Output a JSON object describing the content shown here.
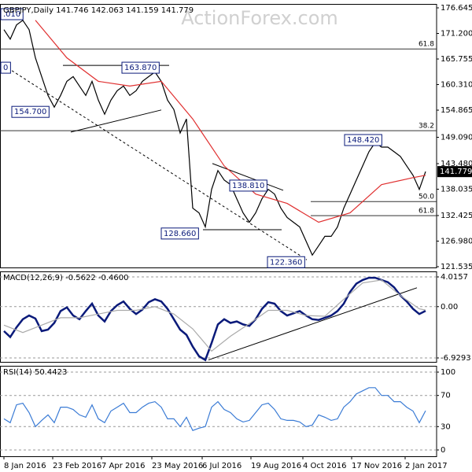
{
  "chart_data": [
    {
      "type": "line",
      "header": "GBPJPY,Daily  141.746 142.063 141.159 141.779",
      "watermark": "ActionForex.com",
      "xlim": [
        -2.5,
        275
      ],
      "ylim": [
        121.37,
        177.48
      ],
      "yticks": [
        {
          "value": 176.645,
          "label": "176.645"
        },
        {
          "value": 171.2,
          "label": "171.200"
        },
        {
          "value": 165.755,
          "label": "165.755"
        },
        {
          "value": 160.31,
          "label": "160.310"
        },
        {
          "value": 154.865,
          "label": "154.865"
        },
        {
          "value": 149.09,
          "label": "149.090"
        },
        {
          "value": 143.48,
          "label": "143.480"
        },
        {
          "value": 138.035,
          "label": "138.035"
        },
        {
          "value": 132.425,
          "label": "132.425"
        },
        {
          "value": 126.98,
          "label": "126.980"
        },
        {
          "value": 121.535,
          "label": "121.535"
        }
      ],
      "last": {
        "value": 141.779,
        "label": "141.779"
      },
      "x": [
        0,
        4,
        8,
        12,
        16,
        20,
        24,
        28,
        32,
        36,
        40,
        44,
        48,
        52,
        56,
        60,
        64,
        68,
        72,
        76,
        80,
        84,
        88,
        92,
        96,
        100,
        104,
        108,
        112,
        116,
        120,
        124,
        128,
        132,
        136,
        140,
        144,
        148,
        152,
        156,
        160,
        164,
        168,
        172,
        176,
        180,
        184,
        188,
        192,
        196,
        200,
        204,
        208,
        212,
        216,
        220,
        224,
        228,
        232,
        236,
        240,
        244,
        248,
        252,
        256,
        260,
        264,
        268
      ],
      "series": [
        {
          "color": "#000000",
          "values": [
            172,
            170,
            173,
            174,
            172,
            166,
            162,
            158,
            155.5,
            158,
            161,
            162,
            160,
            158,
            161,
            157,
            154,
            157,
            159,
            160,
            158,
            159,
            161,
            162,
            163,
            161,
            157,
            155,
            150,
            153,
            134,
            133,
            130,
            138,
            142,
            140,
            139,
            136,
            133,
            131,
            133,
            136,
            138,
            137,
            134,
            132,
            131,
            130,
            127,
            124,
            126,
            128,
            128,
            130,
            134,
            137,
            140,
            143,
            146,
            148,
            147,
            147,
            146,
            145,
            143,
            141,
            138,
            141.779
          ]
        },
        {
          "color": "#e03030",
          "x": [
            20,
            40,
            60,
            80,
            100,
            120,
            140,
            160,
            180,
            200,
            220,
            240,
            260,
            268
          ],
          "values": [
            174,
            166,
            161,
            160,
            161,
            153,
            143,
            137,
            135,
            131,
            133,
            139,
            140.5,
            141
          ]
        }
      ],
      "levels": [
        {
          "label": "61.8",
          "value": 167.9
        },
        {
          "label": "38.2",
          "value": 150.5
        },
        {
          "label": "50.0",
          "value": 135.4,
          "from": 195
        },
        {
          "label": "61.8",
          "value": 132.4,
          "from": 195
        }
      ],
      "lines": [
        {
          "x": [
            -2.5,
            192.5
          ],
          "y": [
            164.9,
            123.0
          ],
          "dashed": true
        },
        {
          "x": [
            37.5,
            105
          ],
          "y": [
            164.4,
            164.4
          ]
        },
        {
          "x": [
            42.5,
            100
          ],
          "y": [
            150.2,
            154.9
          ]
        },
        {
          "x": [
            132.5,
            177.5
          ],
          "y": [
            143.5,
            137.8
          ]
        },
        {
          "x": [
            126.5,
            176.5
          ],
          "y": [
            129.4,
            129.4
          ]
        }
      ],
      "annotations": [
        {
          "text": ".010",
          "x": -2.5,
          "y": 175.3
        },
        {
          "text": "0",
          "x": -2.5,
          "y": 163.9
        },
        {
          "text": "163.870",
          "x": 75,
          "y": 163.9
        },
        {
          "text": "154.700",
          "x": 5,
          "y": 154.5
        },
        {
          "text": "148.420",
          "x": 216.5,
          "y": 148.5
        },
        {
          "text": "138.810",
          "x": 143.5,
          "y": 138.8
        },
        {
          "text": "128.660",
          "x": 100,
          "y": 128.6
        },
        {
          "text": "122.360",
          "x": 167.5,
          "y": 122.5
        }
      ]
    },
    {
      "type": "line",
      "header": "MACD(12,26,9) -0.5622 -0.4600",
      "grid": true,
      "xlim": [
        -2.5,
        275
      ],
      "ylim": [
        -7.46,
        4.76
      ],
      "yticks": [
        {
          "value": 4.0157,
          "label": "4.0157"
        },
        {
          "value": 0,
          "label": "0.00"
        },
        {
          "value": -6.9293,
          "label": "-6.9293"
        }
      ],
      "x": [
        0,
        4,
        8,
        12,
        16,
        20,
        24,
        28,
        32,
        36,
        40,
        44,
        48,
        52,
        56,
        60,
        64,
        68,
        72,
        76,
        80,
        84,
        88,
        92,
        96,
        100,
        104,
        108,
        112,
        116,
        120,
        124,
        128,
        132,
        136,
        140,
        144,
        148,
        152,
        156,
        160,
        164,
        168,
        172,
        176,
        180,
        184,
        188,
        192,
        196,
        200,
        204,
        208,
        212,
        216,
        220,
        224,
        228,
        232,
        236,
        240,
        244,
        248,
        252,
        256,
        260,
        264,
        268
      ],
      "series": [
        {
          "color": "#0a1a7a",
          "width": 2.5,
          "values": [
            -3.3,
            -4.1,
            -2.8,
            -1.7,
            -1.2,
            -1.6,
            -3.3,
            -3.1,
            -2.2,
            -0.6,
            -0.1,
            -1.2,
            -1.7,
            -0.6,
            0.4,
            -1.2,
            -2.0,
            -0.6,
            0.2,
            0.7,
            -0.3,
            -1.0,
            -0.4,
            0.6,
            1.0,
            0.7,
            -0.3,
            -1.7,
            -3.1,
            -3.8,
            -5.4,
            -6.7,
            -7.2,
            -4.9,
            -2.4,
            -1.7,
            -2.2,
            -2.0,
            -2.4,
            -2.6,
            -1.7,
            -0.3,
            0.6,
            0.4,
            -0.6,
            -1.2,
            -0.9,
            -0.6,
            -1.2,
            -1.7,
            -1.8,
            -1.5,
            -1.2,
            -0.6,
            0.4,
            2.0,
            3.1,
            3.6,
            3.9,
            3.9,
            3.6,
            3.3,
            2.6,
            1.5,
            0.7,
            -0.3,
            -1.0,
            -0.5622
          ]
        },
        {
          "color": "#aaaaaa",
          "x": [
            0,
            12,
            24,
            36,
            48,
            60,
            72,
            84,
            96,
            108,
            120,
            132,
            144,
            156,
            168,
            180,
            192,
            204,
            216,
            228,
            240,
            252,
            264,
            268
          ],
          "values": [
            -2.5,
            -3.5,
            -2.5,
            -1.5,
            -1.5,
            -1.0,
            -0.5,
            -0.5,
            0.0,
            -1.0,
            -3.0,
            -6.0,
            -4.0,
            -2.3,
            -0.5,
            -0.5,
            -1.2,
            -1.3,
            1.0,
            3.2,
            3.6,
            1.5,
            -0.3,
            -0.46
          ]
        }
      ],
      "lines": [
        {
          "x": [
            130,
            262.5
          ],
          "y": [
            -7.2,
            2.55
          ]
        }
      ]
    },
    {
      "type": "line",
      "header": "RSI(14) 50.4423",
      "grid": true,
      "xlim": [
        -2.5,
        275
      ],
      "ylim": [
        -8.1,
        108.1
      ],
      "yticks": [
        100,
        70,
        30,
        0
      ],
      "xticks": [
        {
          "value": 0,
          "label": "8 Jan 2016"
        },
        {
          "value": 31,
          "label": "23 Feb 2016"
        },
        {
          "value": 62,
          "label": "7 Apr 2016"
        },
        {
          "value": 94,
          "label": "23 May 2016"
        },
        {
          "value": 126,
          "label": "6 Jul 2016"
        },
        {
          "value": 157,
          "label": "19 Aug 2016"
        },
        {
          "value": 190,
          "label": "4 Oct 2016"
        },
        {
          "value": 221,
          "label": "17 Nov 2016"
        },
        {
          "value": 255,
          "label": "2 Jan 2017"
        }
      ],
      "x": [
        0,
        4,
        8,
        12,
        16,
        20,
        24,
        28,
        32,
        36,
        40,
        44,
        48,
        52,
        56,
        60,
        64,
        68,
        72,
        76,
        80,
        84,
        88,
        92,
        96,
        100,
        104,
        108,
        112,
        116,
        120,
        124,
        128,
        132,
        136,
        140,
        144,
        148,
        152,
        156,
        160,
        164,
        168,
        172,
        176,
        180,
        184,
        188,
        192,
        196,
        200,
        204,
        208,
        212,
        216,
        220,
        224,
        228,
        232,
        236,
        240,
        244,
        248,
        252,
        256,
        260,
        264,
        268
      ],
      "series": [
        {
          "color": "#3a7bd5",
          "values": [
            40,
            35,
            58,
            60,
            48,
            30,
            38,
            45,
            35,
            55,
            55,
            52,
            45,
            42,
            58,
            40,
            35,
            50,
            55,
            60,
            48,
            48,
            55,
            60,
            62,
            55,
            40,
            40,
            30,
            42,
            25,
            28,
            30,
            55,
            62,
            52,
            48,
            40,
            36,
            38,
            48,
            58,
            60,
            52,
            40,
            38,
            38,
            36,
            30,
            32,
            45,
            42,
            38,
            40,
            55,
            62,
            72,
            76,
            80,
            80,
            70,
            70,
            62,
            62,
            55,
            50,
            35,
            50.4423
          ]
        }
      ]
    }
  ]
}
